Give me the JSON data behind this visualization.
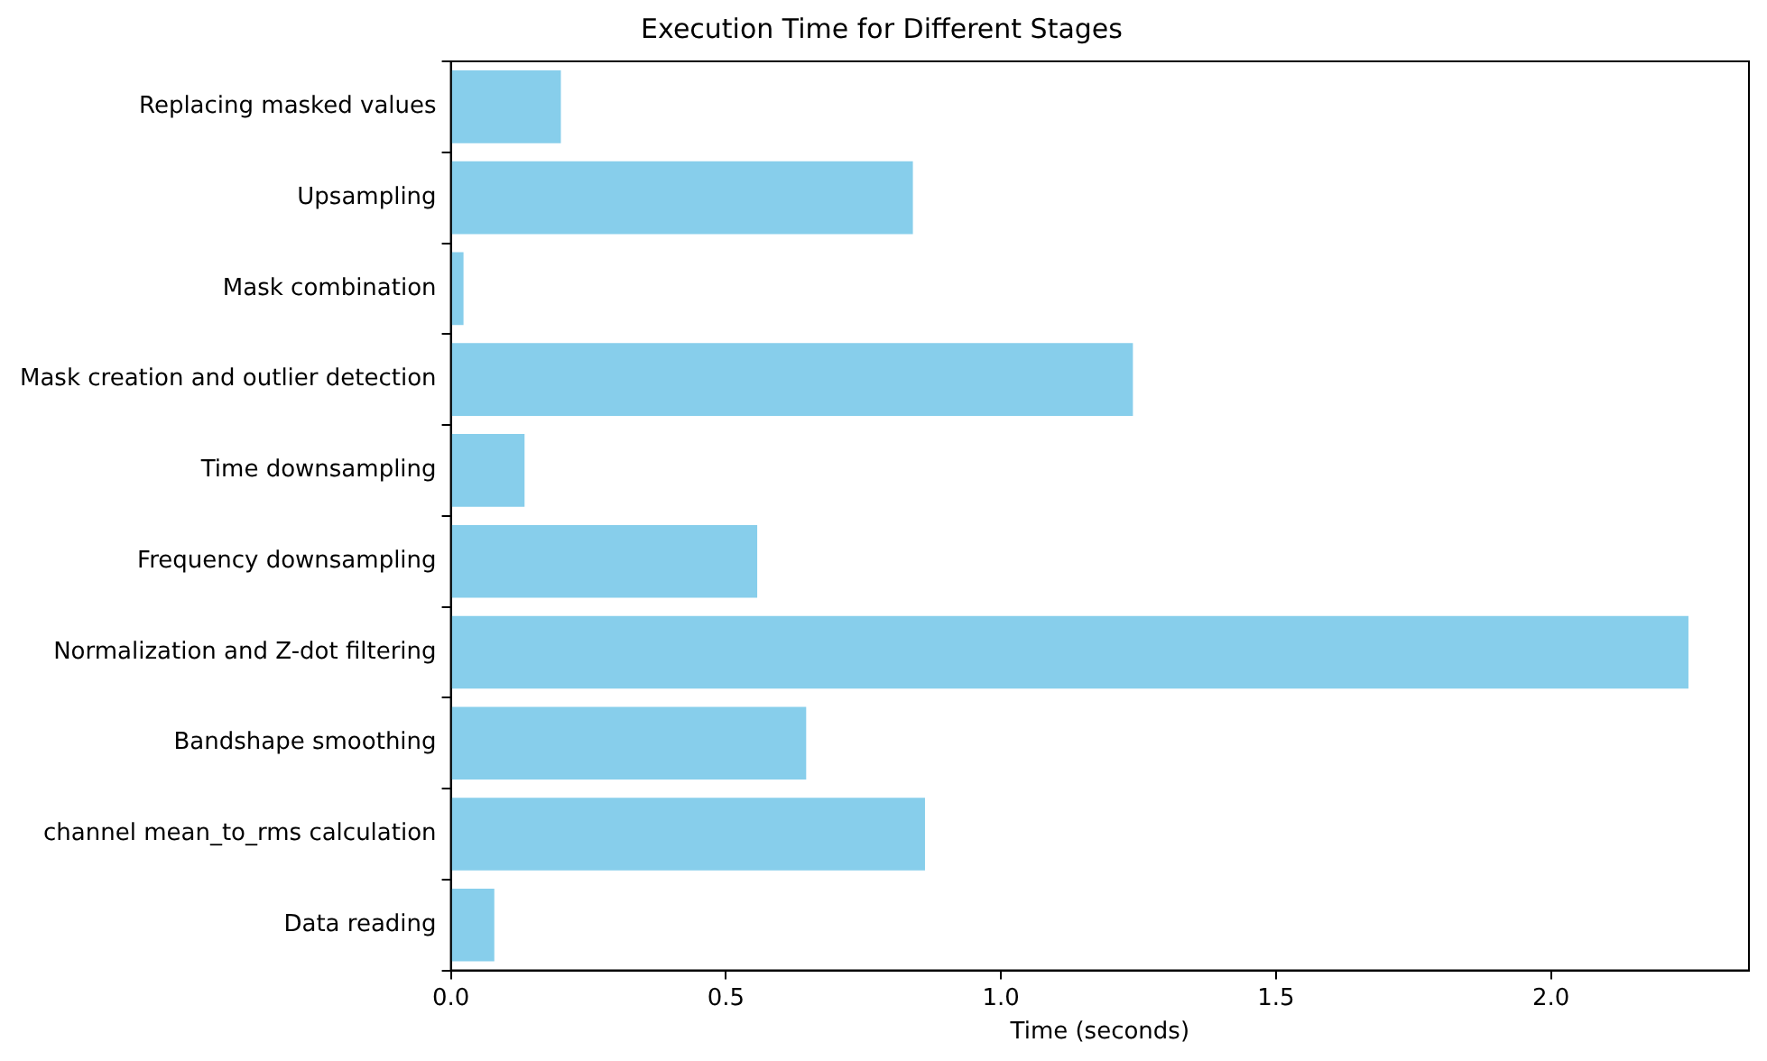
{
  "chart_data": {
    "type": "bar",
    "orientation": "horizontal",
    "title": "Execution Time for Different Stages",
    "xlabel": "Time (seconds)",
    "categories": [
      "Replacing masked values",
      "Upsampling",
      "Mask combination",
      "Mask creation and outlier detection",
      "Time downsampling",
      "Frequency downsampling",
      "Normalization and Z-dot filtering",
      "Bandshape smoothing",
      "channel mean_to_rms calculation",
      "Data reading"
    ],
    "values": [
      0.2,
      0.84,
      0.023,
      1.24,
      0.134,
      0.557,
      2.25,
      0.646,
      0.862,
      0.079
    ],
    "color": "#87ceeb",
    "xlim": [
      0,
      2.36
    ],
    "xticks": [
      {
        "value": 0,
        "label": "0.0"
      },
      {
        "value": 0.5,
        "label": "0.5"
      },
      {
        "value": 1,
        "label": "1.0"
      },
      {
        "value": 1.5,
        "label": "1.5"
      },
      {
        "value": 2,
        "label": "2.0"
      }
    ],
    "grid": false,
    "legend": false
  }
}
